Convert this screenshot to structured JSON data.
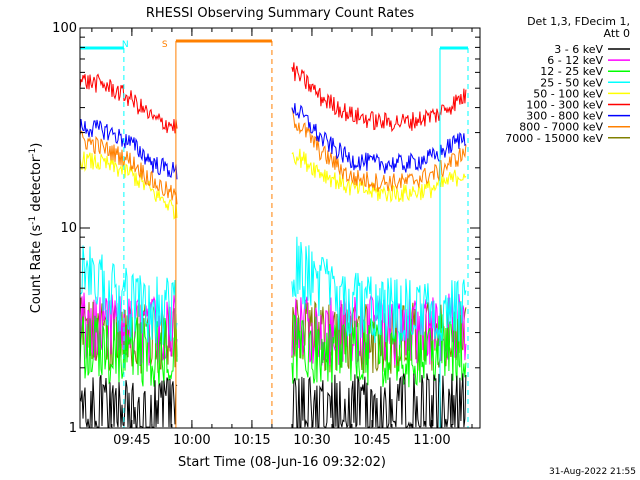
{
  "chart_data": {
    "type": "line",
    "title": "RHESSI Observing Summary Count Rates",
    "xlabel": "Start Time (08-Jun-16 09:32:02)",
    "ylabel_main": "Count Rate (s",
    "ylabel_sup1": "-1",
    "ylabel_mid": " detector",
    "ylabel_sup2": "-1",
    "ylabel_end": ")",
    "y_scale": "log",
    "ylim": [
      1,
      100
    ],
    "y_ticks": [
      {
        "value": 1,
        "label": "1"
      },
      {
        "value": 10,
        "label": "10"
      },
      {
        "value": 100,
        "label": "100"
      }
    ],
    "xlim": [
      "09:32:02",
      "11:12:00"
    ],
    "x_ticks": [
      {
        "time": "09:45",
        "label": "09:45"
      },
      {
        "time": "10:00",
        "label": "10:00"
      },
      {
        "time": "10:15",
        "label": "10:15"
      },
      {
        "time": "10:30",
        "label": "10:30"
      },
      {
        "time": "10:45",
        "label": "10:45"
      },
      {
        "time": "11:00",
        "label": "11:00"
      }
    ],
    "legend_header": [
      "Det 1,3, FDecim 1,",
      "Att 0"
    ],
    "legend_placement": "right of plot, top",
    "timestamp": "31-Aug-2022 21:55",
    "gaps": [
      [
        "09:56:30",
        "10:25:00"
      ]
    ],
    "annotations": [
      {
        "text": "N",
        "color": "#00ffff",
        "time": "09:45"
      },
      {
        "text": "S",
        "color": "#ff8000",
        "time": "09:56"
      }
    ],
    "night_intervals": [
      [
        "09:32:02",
        "09:43:00"
      ],
      [
        "11:02:00",
        "11:09:00"
      ]
    ],
    "saa_interval": [
      "09:56:00",
      "10:20:00"
    ],
    "series": [
      {
        "name": "3 - 6 keV",
        "color": "#000000",
        "pre": [
          1.5,
          1.5,
          1.4,
          1.4,
          1.5
        ],
        "post": [
          1.5,
          1.5,
          1.5,
          1.5,
          1.5,
          1.5,
          1.5
        ]
      },
      {
        "name": "6 - 12 keV",
        "color": "#ff00ff",
        "pre": [
          3.8,
          3.8,
          3.7,
          3.7,
          3.8
        ],
        "post": [
          3.8,
          3.7,
          3.7,
          3.7,
          3.7,
          3.8,
          3.8
        ]
      },
      {
        "name": "12 - 25 keV",
        "color": "#00ff00",
        "pre": [
          3.0,
          3.0,
          2.9,
          2.9,
          3.0
        ],
        "post": [
          3.0,
          2.9,
          2.9,
          2.9,
          2.9,
          3.0,
          3.0
        ]
      },
      {
        "name": "25 - 50 keV",
        "color": "#00ffff",
        "pre": [
          7.0,
          6.0,
          5.0,
          4.6,
          4.5
        ],
        "post": [
          7.5,
          6.0,
          5.0,
          4.6,
          4.5,
          4.5,
          4.5
        ]
      },
      {
        "name": "50 - 100 keV",
        "color": "#ffff00",
        "pre": [
          22,
          21,
          19,
          15,
          12
        ],
        "post": [
          24,
          19,
          16,
          15,
          15,
          16,
          19
        ]
      },
      {
        "name": "100 - 300 keV",
        "color": "#ff0000",
        "pre": [
          55,
          52,
          45,
          35,
          32
        ],
        "post": [
          62,
          45,
          37,
          34,
          34,
          37,
          46
        ]
      },
      {
        "name": "300 - 800 keV",
        "color": "#0000ff",
        "pre": [
          32,
          31,
          27,
          21,
          19
        ],
        "post": [
          41,
          28,
          22,
          21,
          21,
          23,
          29
        ]
      },
      {
        "name": "800 - 7000 keV",
        "color": "#ff8000",
        "pre": [
          28,
          25,
          22,
          17,
          14
        ],
        "post": [
          36,
          24,
          18,
          17,
          17,
          19,
          24
        ]
      },
      {
        "name": "7000 - 15000 keV",
        "color": "#808000",
        "pre": [
          3.6,
          3.5,
          3.4,
          3.4,
          3.5
        ],
        "post": [
          3.6,
          3.4,
          3.4,
          3.3,
          3.4,
          3.5,
          3.6
        ]
      }
    ]
  }
}
